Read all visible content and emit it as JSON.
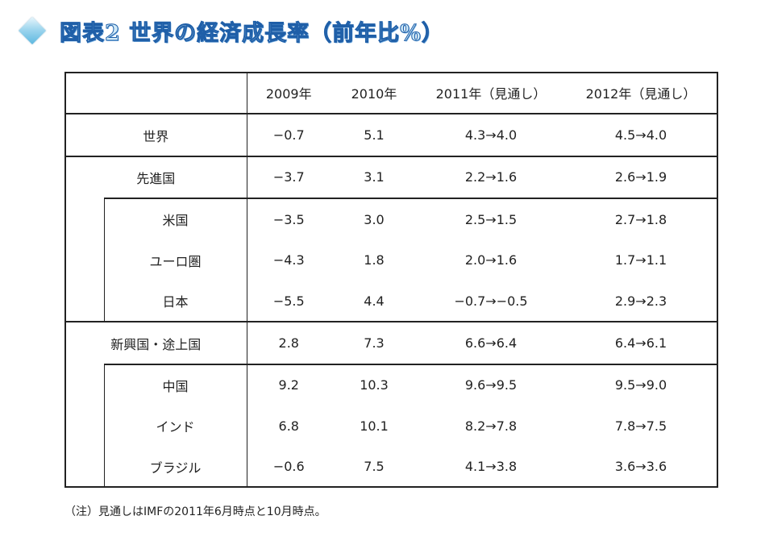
{
  "title": "図表2 世界の経済成長率（前年比%）",
  "icon": "diamond-bullet-icon",
  "table": {
    "headers": [
      "",
      "2009年",
      "2010年",
      "2011年（見通し）",
      "2012年（見通し）"
    ],
    "rows": [
      {
        "label": "世界",
        "v2009": "−0.7",
        "v2010": "5.1",
        "v2011": "4.3→4.0",
        "v2012": "4.5→4.0"
      },
      {
        "label": "先進国",
        "v2009": "−3.7",
        "v2010": "3.1",
        "v2011": "2.2→1.6",
        "v2012": "2.6→1.9"
      },
      {
        "label": "米国",
        "v2009": "−3.5",
        "v2010": "3.0",
        "v2011": "2.5→1.5",
        "v2012": "2.7→1.8"
      },
      {
        "label": "ユーロ圏",
        "v2009": "−4.3",
        "v2010": "1.8",
        "v2011": "2.0→1.6",
        "v2012": "1.7→1.1"
      },
      {
        "label": "日本",
        "v2009": "−5.5",
        "v2010": "4.4",
        "v2011": "−0.7→−0.5",
        "v2012": "2.9→2.3"
      },
      {
        "label": "新興国・途上国",
        "v2009": "2.8",
        "v2010": "7.3",
        "v2011": "6.6→6.4",
        "v2012": "6.4→6.1"
      },
      {
        "label": "中国",
        "v2009": "9.2",
        "v2010": "10.3",
        "v2011": "9.6→9.5",
        "v2012": "9.5→9.0"
      },
      {
        "label": "インド",
        "v2009": "6.8",
        "v2010": "10.1",
        "v2011": "8.2→7.8",
        "v2012": "7.8→7.5"
      },
      {
        "label": "ブラジル",
        "v2009": "−0.6",
        "v2010": "7.5",
        "v2011": "4.1→3.8",
        "v2012": "3.6→3.6"
      }
    ]
  },
  "note": "（注）見通しはIMFの2011年6月時点と10月時点。"
}
